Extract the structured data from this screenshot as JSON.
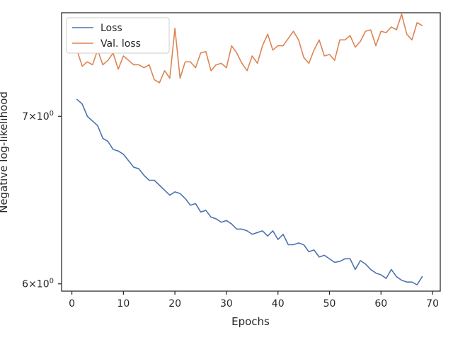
{
  "chart_data": {
    "type": "line",
    "xlabel": "Epochs",
    "ylabel": "Negative log-likelihood",
    "yscale": "log",
    "xlim": [
      -2,
      71.5
    ],
    "ylim": [
      5.96,
      7.7
    ],
    "xticks": [
      0,
      10,
      20,
      30,
      40,
      50,
      60,
      70
    ],
    "xtick_labels": [
      "0",
      "10",
      "20",
      "30",
      "40",
      "50",
      "60",
      "70"
    ],
    "yticks": [
      {
        "value": 7,
        "mantissa": "7",
        "base": "10",
        "exponent": "0"
      },
      {
        "value": 6,
        "mantissa": "6",
        "base": "10",
        "exponent": "0"
      }
    ],
    "grid": false,
    "legend": {
      "location": "upper-left"
    },
    "x": [
      1,
      2,
      3,
      4,
      5,
      6,
      7,
      8,
      9,
      10,
      11,
      12,
      13,
      14,
      15,
      16,
      17,
      18,
      19,
      20,
      21,
      22,
      23,
      24,
      25,
      26,
      27,
      28,
      29,
      30,
      31,
      32,
      33,
      34,
      35,
      36,
      37,
      38,
      39,
      40,
      41,
      42,
      43,
      44,
      45,
      46,
      47,
      48,
      49,
      50,
      51,
      52,
      53,
      54,
      55,
      56,
      57,
      58,
      59,
      60,
      61,
      62,
      63,
      64,
      65,
      66,
      67,
      68
    ],
    "series": [
      {
        "name": "Loss",
        "color": "#4c72b0",
        "values": [
          7.11,
          7.08,
          7.0,
          6.97,
          6.94,
          6.86,
          6.84,
          6.79,
          6.78,
          6.76,
          6.72,
          6.68,
          6.67,
          6.63,
          6.6,
          6.6,
          6.57,
          6.54,
          6.51,
          6.53,
          6.52,
          6.49,
          6.45,
          6.46,
          6.41,
          6.42,
          6.38,
          6.37,
          6.35,
          6.36,
          6.34,
          6.31,
          6.31,
          6.3,
          6.28,
          6.29,
          6.3,
          6.27,
          6.3,
          6.25,
          6.28,
          6.22,
          6.22,
          6.23,
          6.22,
          6.18,
          6.19,
          6.15,
          6.16,
          6.14,
          6.12,
          6.125,
          6.14,
          6.14,
          6.08,
          6.13,
          6.11,
          6.08,
          6.06,
          6.05,
          6.03,
          6.08,
          6.04,
          6.02,
          6.01,
          6.01,
          5.995,
          6.04
        ]
      },
      {
        "name": "Val. loss",
        "color": "#dd8452",
        "values": [
          7.44,
          7.33,
          7.36,
          7.34,
          7.44,
          7.34,
          7.37,
          7.42,
          7.31,
          7.4,
          7.37,
          7.34,
          7.34,
          7.32,
          7.34,
          7.24,
          7.22,
          7.3,
          7.25,
          7.59,
          7.25,
          7.36,
          7.36,
          7.32,
          7.42,
          7.43,
          7.3,
          7.34,
          7.35,
          7.32,
          7.47,
          7.42,
          7.35,
          7.3,
          7.4,
          7.35,
          7.47,
          7.55,
          7.44,
          7.47,
          7.47,
          7.52,
          7.57,
          7.51,
          7.39,
          7.35,
          7.44,
          7.51,
          7.4,
          7.41,
          7.37,
          7.51,
          7.51,
          7.54,
          7.46,
          7.5,
          7.57,
          7.58,
          7.47,
          7.57,
          7.56,
          7.6,
          7.58,
          7.69,
          7.55,
          7.51,
          7.63,
          7.61
        ]
      }
    ]
  }
}
